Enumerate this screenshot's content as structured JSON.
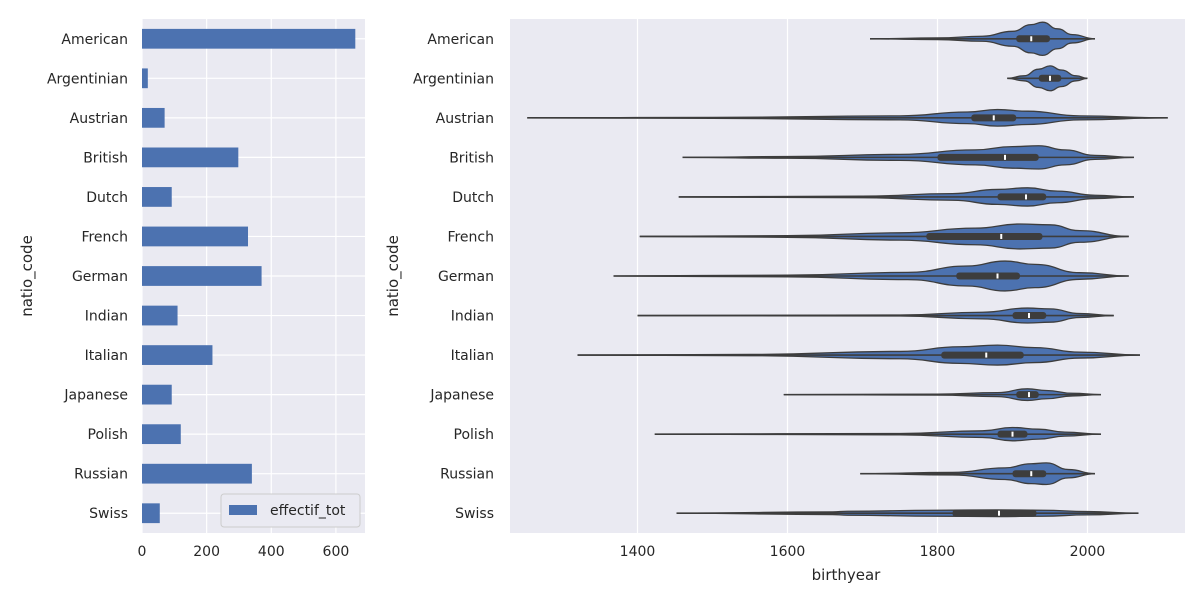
{
  "chart_data": [
    {
      "type": "bar",
      "orientation": "horizontal",
      "categories": [
        "American",
        "Argentinian",
        "Austrian",
        "British",
        "Dutch",
        "French",
        "German",
        "Indian",
        "Italian",
        "Japanese",
        "Polish",
        "Russian",
        "Swiss"
      ],
      "series": [
        {
          "name": "effectif_tot",
          "values": [
            660,
            18,
            70,
            298,
            92,
            328,
            370,
            110,
            218,
            92,
            120,
            340,
            55
          ]
        }
      ],
      "xlim": [
        0,
        690
      ],
      "xticks": [
        0,
        200,
        400,
        600
      ],
      "xlabel": "",
      "ylabel": "natio_code",
      "legend": "bottom-right",
      "grid": true,
      "bar_color": "#4c72b0"
    },
    {
      "type": "violin",
      "orientation": "horizontal",
      "categories": [
        "American",
        "Argentinian",
        "Austrian",
        "British",
        "Dutch",
        "French",
        "German",
        "Indian",
        "Italian",
        "Japanese",
        "Polish",
        "Russian",
        "Swiss"
      ],
      "xlabel": "birthyear",
      "ylabel": "natio_code",
      "xlim": [
        1230,
        2130
      ],
      "xticks": [
        1400,
        1600,
        1800,
        2000
      ],
      "grid": true,
      "fill_color": "#4c72b0",
      "violins": [
        {
          "min": 1710,
          "max": 2010,
          "q1": 1905,
          "median": 1925,
          "q3": 1950,
          "density": [
            [
              1710,
              0
            ],
            [
              1800,
              0.05
            ],
            [
              1860,
              0.15
            ],
            [
              1900,
              0.45
            ],
            [
              1925,
              0.85
            ],
            [
              1940,
              1
            ],
            [
              1960,
              0.6
            ],
            [
              1980,
              0.25
            ],
            [
              2010,
              0
            ]
          ]
        },
        {
          "min": 1893,
          "max": 2000,
          "q1": 1935,
          "median": 1950,
          "q3": 1965,
          "density": [
            [
              1893,
              0
            ],
            [
              1915,
              0.15
            ],
            [
              1935,
              0.55
            ],
            [
              1950,
              0.75
            ],
            [
              1965,
              0.5
            ],
            [
              1985,
              0.15
            ],
            [
              2000,
              0
            ]
          ]
        },
        {
          "min": 1253,
          "max": 2107,
          "q1": 1845,
          "median": 1875,
          "q3": 1905,
          "density": [
            [
              1253,
              0
            ],
            [
              1500,
              0.03
            ],
            [
              1750,
              0.12
            ],
            [
              1840,
              0.35
            ],
            [
              1880,
              0.5
            ],
            [
              1920,
              0.4
            ],
            [
              1990,
              0.12
            ],
            [
              2107,
              0
            ]
          ]
        },
        {
          "min": 1460,
          "max": 2062,
          "q1": 1800,
          "median": 1890,
          "q3": 1935,
          "density": [
            [
              1460,
              0
            ],
            [
              1600,
              0.05
            ],
            [
              1750,
              0.18
            ],
            [
              1850,
              0.45
            ],
            [
              1900,
              0.65
            ],
            [
              1935,
              0.7
            ],
            [
              1970,
              0.45
            ],
            [
              2010,
              0.12
            ],
            [
              2062,
              0
            ]
          ]
        },
        {
          "min": 1455,
          "max": 2062,
          "q1": 1880,
          "median": 1918,
          "q3": 1945,
          "density": [
            [
              1455,
              0
            ],
            [
              1700,
              0.05
            ],
            [
              1820,
              0.2
            ],
            [
              1880,
              0.45
            ],
            [
              1920,
              0.55
            ],
            [
              1960,
              0.35
            ],
            [
              2010,
              0.1
            ],
            [
              2062,
              0
            ]
          ]
        },
        {
          "min": 1403,
          "max": 2055,
          "q1": 1785,
          "median": 1885,
          "q3": 1940,
          "density": [
            [
              1403,
              0
            ],
            [
              1600,
              0.05
            ],
            [
              1750,
              0.22
            ],
            [
              1850,
              0.5
            ],
            [
              1910,
              0.75
            ],
            [
              1950,
              0.7
            ],
            [
              1990,
              0.35
            ],
            [
              2055,
              0
            ]
          ]
        },
        {
          "min": 1368,
          "max": 2055,
          "q1": 1825,
          "median": 1880,
          "q3": 1910,
          "density": [
            [
              1368,
              0
            ],
            [
              1600,
              0.05
            ],
            [
              1760,
              0.22
            ],
            [
              1840,
              0.6
            ],
            [
              1890,
              0.9
            ],
            [
              1930,
              0.7
            ],
            [
              1990,
              0.2
            ],
            [
              2055,
              0
            ]
          ]
        },
        {
          "min": 1400,
          "max": 2035,
          "q1": 1900,
          "median": 1922,
          "q3": 1945,
          "density": [
            [
              1400,
              0
            ],
            [
              1750,
              0.03
            ],
            [
              1860,
              0.2
            ],
            [
              1920,
              0.45
            ],
            [
              1950,
              0.4
            ],
            [
              1990,
              0.12
            ],
            [
              2035,
              0
            ]
          ]
        },
        {
          "min": 1320,
          "max": 2070,
          "q1": 1805,
          "median": 1865,
          "q3": 1915,
          "density": [
            [
              1320,
              0
            ],
            [
              1550,
              0.04
            ],
            [
              1750,
              0.22
            ],
            [
              1830,
              0.5
            ],
            [
              1880,
              0.6
            ],
            [
              1930,
              0.45
            ],
            [
              1990,
              0.18
            ],
            [
              2070,
              0
            ]
          ]
        },
        {
          "min": 1595,
          "max": 2018,
          "q1": 1905,
          "median": 1922,
          "q3": 1935,
          "density": [
            [
              1595,
              0
            ],
            [
              1800,
              0.03
            ],
            [
              1880,
              0.12
            ],
            [
              1920,
              0.35
            ],
            [
              1945,
              0.25
            ],
            [
              1980,
              0.08
            ],
            [
              2018,
              0
            ]
          ]
        },
        {
          "min": 1423,
          "max": 2018,
          "q1": 1880,
          "median": 1900,
          "q3": 1920,
          "density": [
            [
              1423,
              0
            ],
            [
              1750,
              0.04
            ],
            [
              1860,
              0.2
            ],
            [
              1900,
              0.4
            ],
            [
              1935,
              0.3
            ],
            [
              1970,
              0.12
            ],
            [
              2018,
              0
            ]
          ]
        },
        {
          "min": 1697,
          "max": 2010,
          "q1": 1900,
          "median": 1925,
          "q3": 1945,
          "density": [
            [
              1697,
              0
            ],
            [
              1820,
              0.08
            ],
            [
              1890,
              0.35
            ],
            [
              1925,
              0.6
            ],
            [
              1945,
              0.65
            ],
            [
              1975,
              0.25
            ],
            [
              2010,
              0
            ]
          ]
        },
        {
          "min": 1452,
          "max": 2068,
          "q1": 1820,
          "median": 1882,
          "q3": 1932,
          "density": [
            [
              1452,
              0
            ],
            [
              1660,
              0.08
            ],
            [
              1680,
              0.12
            ],
            [
              1800,
              0.18
            ],
            [
              1880,
              0.2
            ],
            [
              1940,
              0.18
            ],
            [
              2000,
              0.1
            ],
            [
              2068,
              0
            ]
          ]
        }
      ]
    }
  ]
}
